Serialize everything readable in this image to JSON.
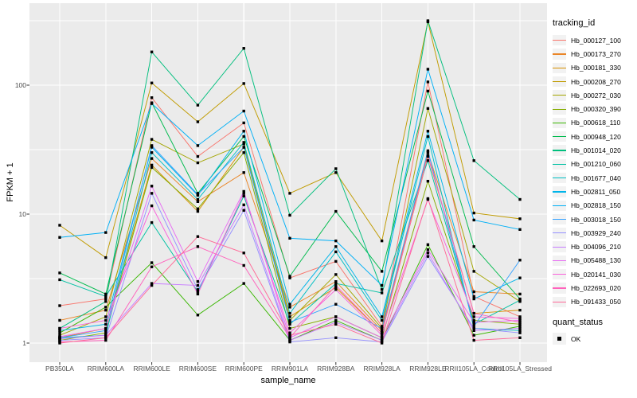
{
  "chart": {
    "x_axis_title": "sample_name",
    "y_axis_title": "FPKM + 1",
    "legend_title_tracking": "tracking_id",
    "legend_title_quant": "quant_status",
    "quant_ok_label": "OK"
  },
  "chart_data": {
    "type": "line",
    "title": "",
    "xlabel": "sample_name",
    "ylabel": "FPKM + 1",
    "y_scale": "log10",
    "ylim": [
      1,
      330
    ],
    "grid": true,
    "legend_position": "right",
    "legend_title": "tracking_id",
    "legend2_title": "quant_status",
    "legend2_items": [
      "OK"
    ],
    "y_major_ticks": [
      1,
      10,
      100
    ],
    "y_major_tick_labels": [
      "1",
      "10",
      "100"
    ],
    "y_minor_ticks": [
      3.162,
      31.62,
      316.2
    ],
    "categories": [
      "PB350LA",
      "RRIM600LA",
      "RRIM600LE",
      "RRIM600SE",
      "RRIM600PE",
      "RRIM901LA",
      "RRIM928BA",
      "RRIM928LA",
      "RRIM928LE",
      "RRII105LA_Control",
      "RRII105LA_Stressed"
    ],
    "point": {
      "shape": "square",
      "color": "#000000",
      "size": 3.4
    },
    "colors": {
      "panel_bg": "#EBEBEB",
      "grid": "#FFFFFF",
      "tick": "#333333",
      "tick_label": "#4D4D4D",
      "axis_title": "#000000",
      "legend_key_bg": "#F2F2F2"
    },
    "series": [
      {
        "name": "Hb_000127_100",
        "color": "#F8766D",
        "values": [
          1.95,
          2.2,
          80,
          28,
          51,
          3.2,
          4.3,
          1.35,
          106,
          2.3,
          1.6
        ]
      },
      {
        "name": "Hb_000173_270",
        "color": "#EA8526",
        "values": [
          1.5,
          1.8,
          27,
          12.5,
          21,
          1.9,
          3.0,
          1.25,
          30,
          2.5,
          2.4
        ]
      },
      {
        "name": "Hb_000181_330",
        "color": "#D89000",
        "values": [
          1.1,
          1.3,
          24,
          10.5,
          33,
          1.6,
          2.7,
          1.2,
          28,
          1.7,
          1.8
        ]
      },
      {
        "name": "Hb_000208_270",
        "color": "#C09B00",
        "values": [
          8.2,
          4.6,
          104,
          52,
          103,
          14.5,
          21,
          6.2,
          310,
          10.2,
          9.2
        ]
      },
      {
        "name": "Hb_000272_030",
        "color": "#A3A500",
        "values": [
          1.15,
          1.6,
          38,
          25,
          35,
          1.5,
          3.4,
          1.3,
          66,
          3.6,
          2.1
        ]
      },
      {
        "name": "Hb_000320_390",
        "color": "#85AD00",
        "values": [
          1.05,
          1.2,
          23,
          11,
          30,
          1.3,
          1.6,
          1.1,
          18,
          1.5,
          1.4
        ]
      },
      {
        "name": "Hb_000618_110",
        "color": "#39B600",
        "values": [
          1.2,
          1.9,
          4.2,
          1.65,
          2.9,
          1.05,
          1.5,
          1.05,
          5.8,
          1.15,
          1.35
        ]
      },
      {
        "name": "Hb_000948_120",
        "color": "#00BB4E",
        "values": [
          3.5,
          2.4,
          73,
          14.5,
          40,
          3.3,
          10.5,
          3.6,
          90,
          5.6,
          2.2
        ]
      },
      {
        "name": "Hb_001014_020",
        "color": "#00BF7D",
        "values": [
          1.3,
          2.1,
          181,
          70,
          193,
          9.8,
          22.5,
          2.6,
          316,
          26,
          13
        ]
      },
      {
        "name": "Hb_001210_060",
        "color": "#00C1A3",
        "values": [
          3.1,
          2.3,
          8.6,
          2.5,
          13.8,
          1.4,
          2.9,
          2.45,
          26,
          1.4,
          2.15
        ]
      },
      {
        "name": "Hb_001677_040",
        "color": "#00BFC4",
        "values": [
          1.1,
          1.15,
          30,
          13,
          36,
          1.7,
          5.1,
          1.5,
          40,
          1.3,
          1.25
        ]
      },
      {
        "name": "Hb_002811_050",
        "color": "#00B5EA",
        "values": [
          1.25,
          1.4,
          33,
          14,
          44,
          2.0,
          5.6,
          1.6,
          44,
          2.2,
          3.2
        ]
      },
      {
        "name": "Hb_002818_150",
        "color": "#00B0F6",
        "values": [
          6.6,
          7.2,
          72,
          34,
          63,
          6.5,
          6.2,
          2.8,
          133,
          9.0,
          7.6
        ]
      },
      {
        "name": "Hb_003018_150",
        "color": "#35A2FF",
        "values": [
          1.1,
          1.25,
          34,
          14.2,
          33,
          1.45,
          2.0,
          1.3,
          31,
          1.35,
          4.4
        ]
      },
      {
        "name": "Hb_003929_240",
        "color": "#9590FF",
        "values": [
          1.05,
          1.1,
          14.5,
          2.6,
          10.7,
          1.02,
          1.1,
          1.02,
          4.7,
          1.3,
          1.2
        ]
      },
      {
        "name": "Hb_004096_210",
        "color": "#C77CFF",
        "values": [
          1.08,
          1.15,
          2.9,
          2.8,
          11.8,
          1.05,
          1.45,
          1.05,
          5.0,
          1.25,
          1.3
        ]
      },
      {
        "name": "Hb_005488_130",
        "color": "#E76BF3",
        "values": [
          1.12,
          1.3,
          16.5,
          3.0,
          15,
          1.1,
          1.6,
          1.1,
          5.3,
          1.45,
          1.5
        ]
      },
      {
        "name": "Hb_020141_030",
        "color": "#FA62DB",
        "values": [
          1.3,
          1.5,
          11.6,
          2.4,
          14.5,
          1.2,
          2.6,
          1.15,
          13,
          1.6,
          1.55
        ]
      },
      {
        "name": "Hb_022693_020",
        "color": "#FF62BC",
        "values": [
          1.02,
          1.05,
          3.9,
          5.6,
          4.0,
          1.1,
          2.8,
          1.2,
          28.5,
          1.7,
          1.45
        ]
      },
      {
        "name": "Hb_091433_050",
        "color": "#FF6A98",
        "values": [
          1.0,
          1.1,
          2.8,
          6.7,
          5.0,
          1.15,
          1.4,
          1.0,
          13.2,
          1.05,
          1.1
        ]
      }
    ]
  }
}
